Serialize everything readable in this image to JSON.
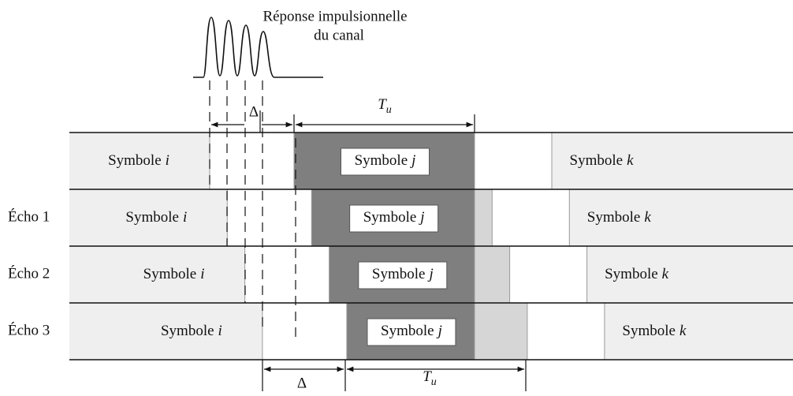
{
  "caption": {
    "line1": "Réponse impulsionnelle",
    "line2": "du canal"
  },
  "top_markers": {
    "delta": "Δ",
    "tu": {
      "base": "T",
      "sub": "u"
    }
  },
  "bottom_markers": {
    "delta": "Δ",
    "tu": {
      "base": "T",
      "sub": "u"
    }
  },
  "rows": [
    {
      "symbols": [
        {
          "word": "Symbole",
          "index": "i"
        },
        {
          "word": "Symbole",
          "index": "j"
        },
        {
          "word": "Symbole",
          "index": "k"
        }
      ]
    },
    {
      "label": "Écho 1",
      "symbols": [
        {
          "word": "Symbole",
          "index": "i"
        },
        {
          "word": "Symbole",
          "index": "j"
        },
        {
          "word": "Symbole",
          "index": "k"
        }
      ]
    },
    {
      "label": "Écho 2",
      "symbols": [
        {
          "word": "Symbole",
          "index": "i"
        },
        {
          "word": "Symbole",
          "index": "j"
        },
        {
          "word": "Symbole",
          "index": "k"
        }
      ]
    },
    {
      "label": "Écho 3",
      "symbols": [
        {
          "word": "Symbole",
          "index": "i"
        },
        {
          "word": "Symbole",
          "index": "j"
        },
        {
          "word": "Symbole",
          "index": "k"
        }
      ]
    }
  ]
}
